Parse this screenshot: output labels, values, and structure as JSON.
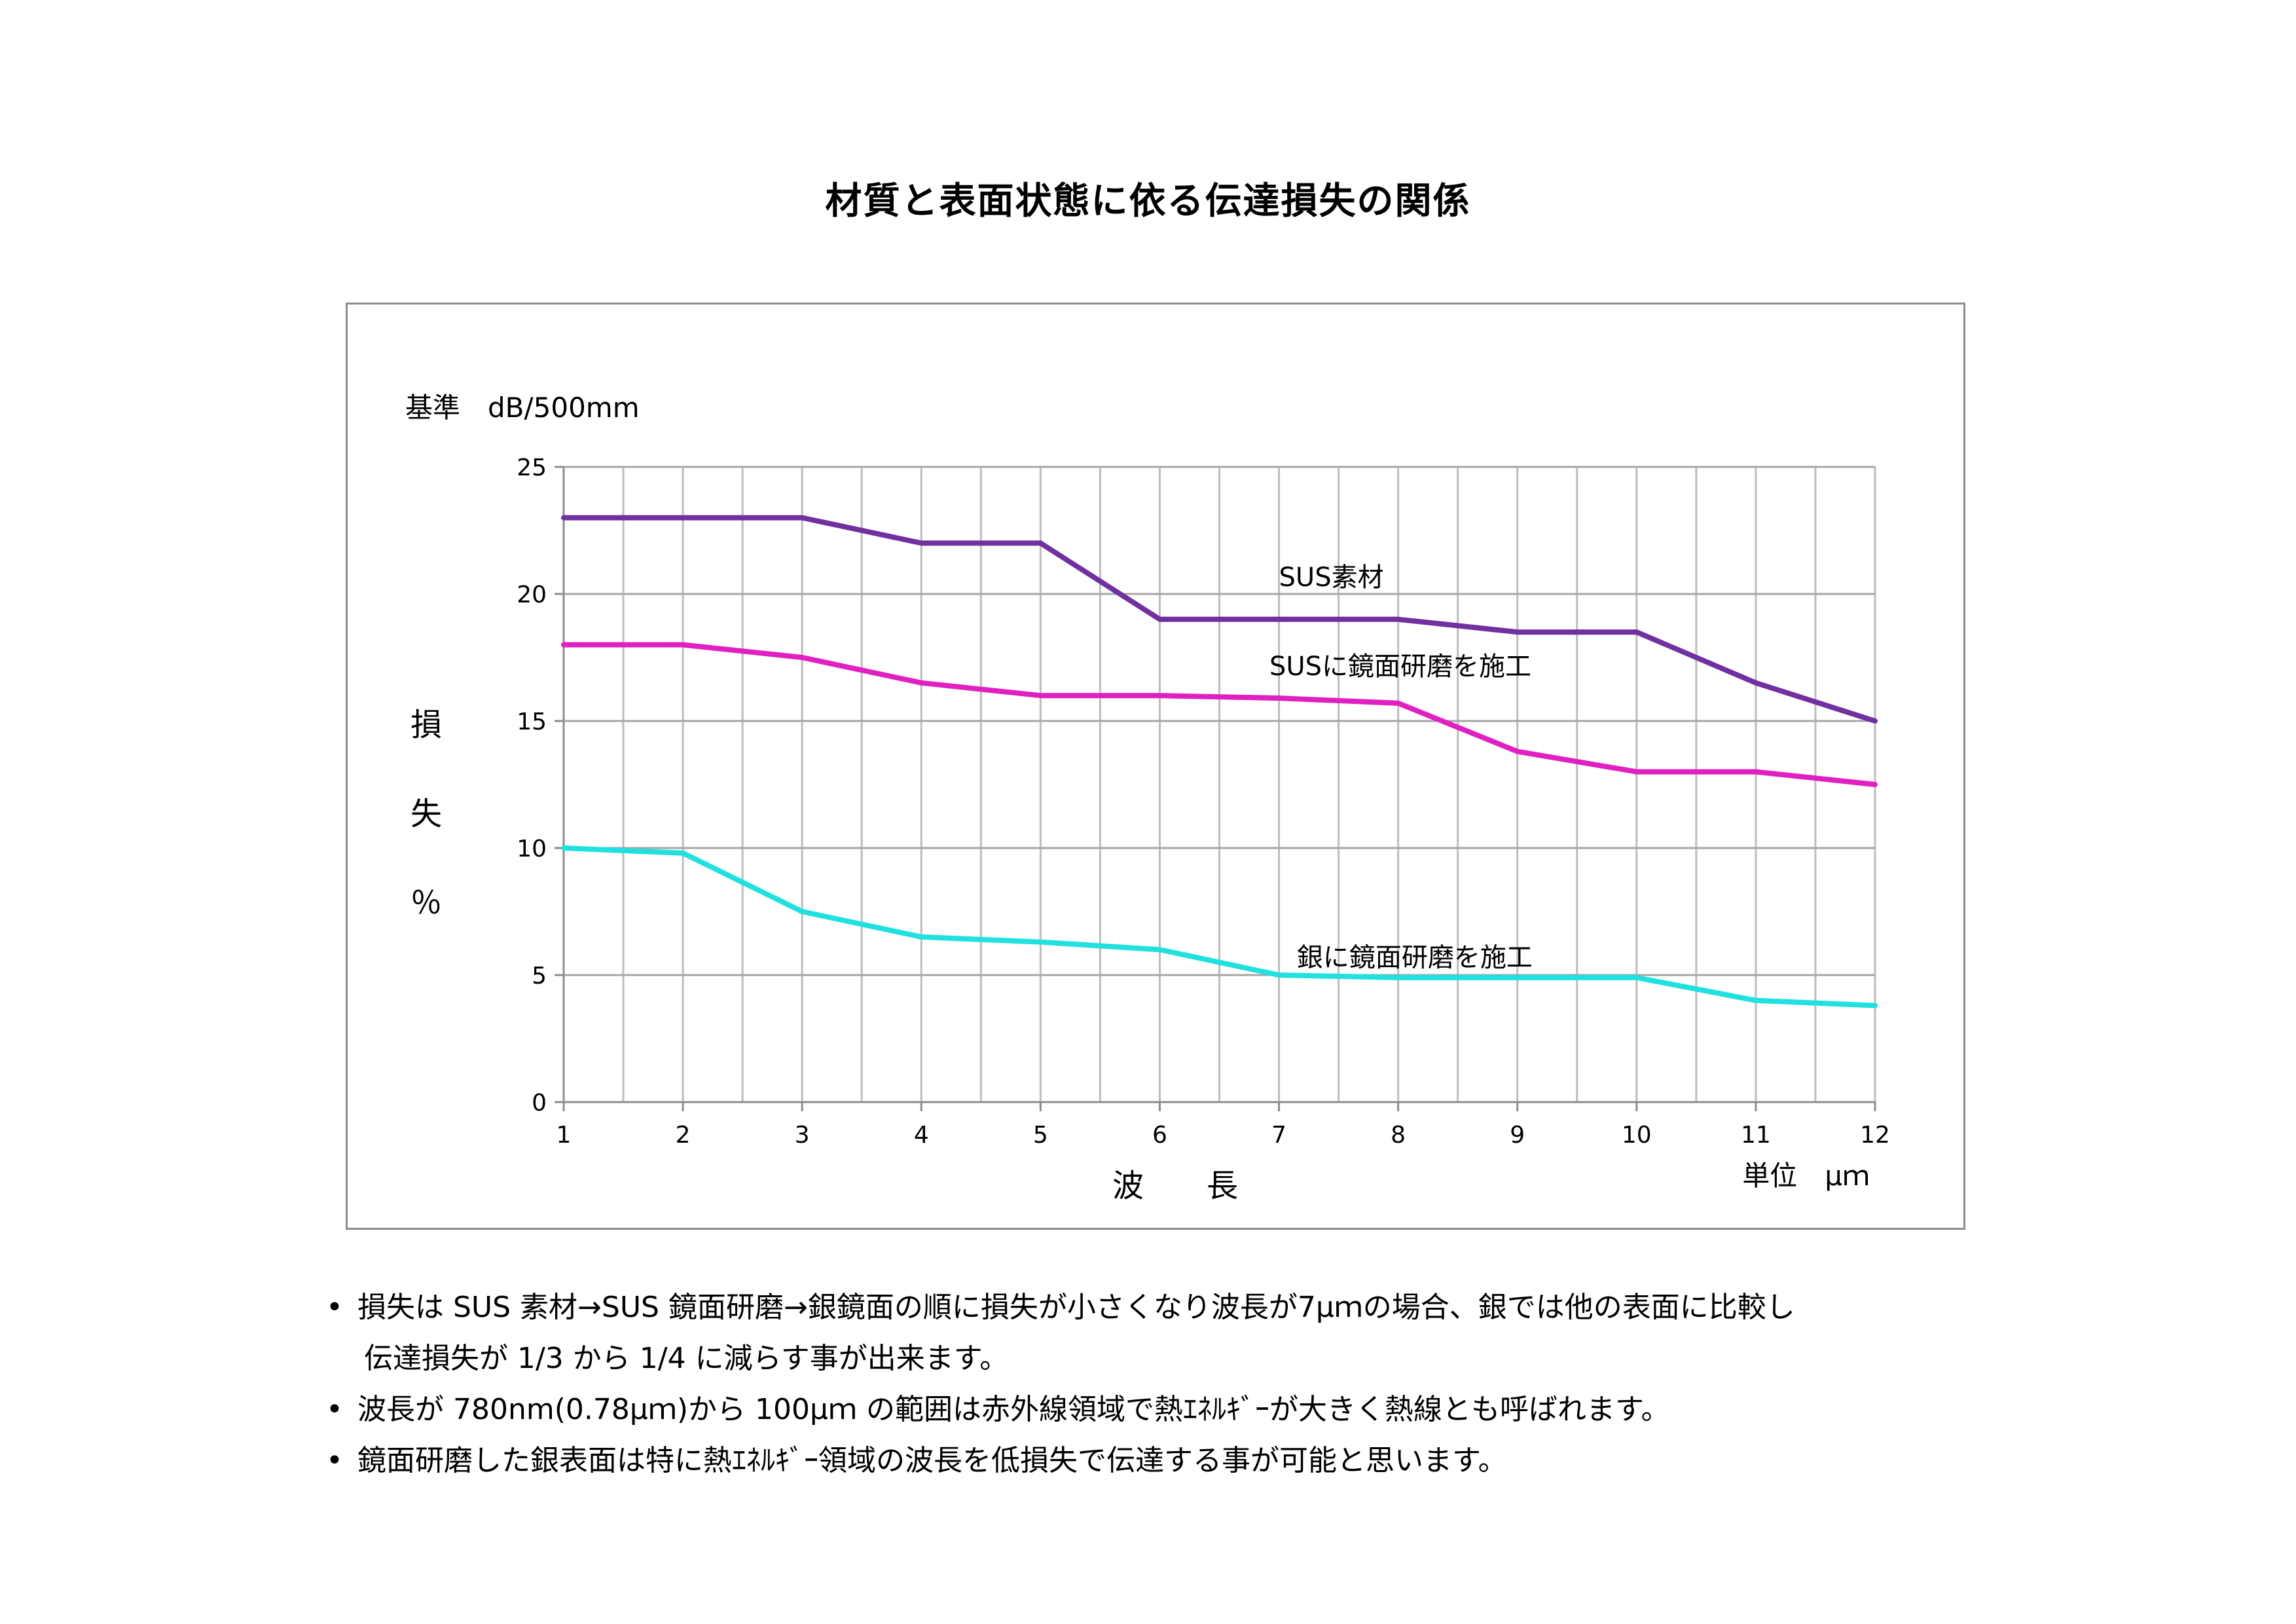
{
  "title": "材質と表面状態に依る伝達損失の関係",
  "chart_data": {
    "type": "line",
    "unit_label": "基準　dB/500mm",
    "ylabel": [
      "損",
      "失",
      "％"
    ],
    "xlabel": "波　　長",
    "x_unit": "単位　μｍ",
    "x": [
      1,
      2,
      3,
      4,
      5,
      6,
      7,
      8,
      9,
      10,
      11,
      12
    ],
    "ylim": [
      0,
      25
    ],
    "yticks": [
      0,
      5,
      10,
      15,
      20,
      25
    ],
    "grid": true,
    "series": [
      {
        "name": "SUS素材",
        "color": "#7030A0",
        "values": [
          23,
          23,
          23,
          22,
          22,
          19,
          19,
          19,
          18.5,
          18.5,
          16.5,
          15
        ]
      },
      {
        "name": "SUSに鏡面研磨を施工",
        "color": "#E020C0",
        "values": [
          18,
          18,
          17.5,
          16.5,
          16,
          16,
          15.9,
          15.7,
          13.8,
          13,
          13,
          12.5
        ]
      },
      {
        "name": "銀に鏡面研磨を施工",
        "color": "#20E0E0",
        "values": [
          10,
          9.8,
          7.5,
          6.5,
          6.3,
          6,
          5,
          4.9,
          4.9,
          4.9,
          4,
          3.8
        ]
      }
    ]
  },
  "notes": [
    [
      "損失は SUS 素材→SUS 鏡面研磨→銀鏡面の順に損失が小さくなり波長が7μｍの場合、銀では他の表面に比較し",
      "伝達損失が 1/3 から 1/4 に減らす事が出来ます。"
    ],
    [
      "波長が 780nm(0.78μｍ)から 100μｍ の範囲は赤外線領域で熱ｴﾈﾙｷﾞｰが大きく熱線とも呼ばれます。"
    ],
    [
      "鏡面研磨した銀表面は特に熱ｴﾈﾙｷﾞｰ領域の波長を低損失で伝達する事が可能と思います。"
    ]
  ]
}
